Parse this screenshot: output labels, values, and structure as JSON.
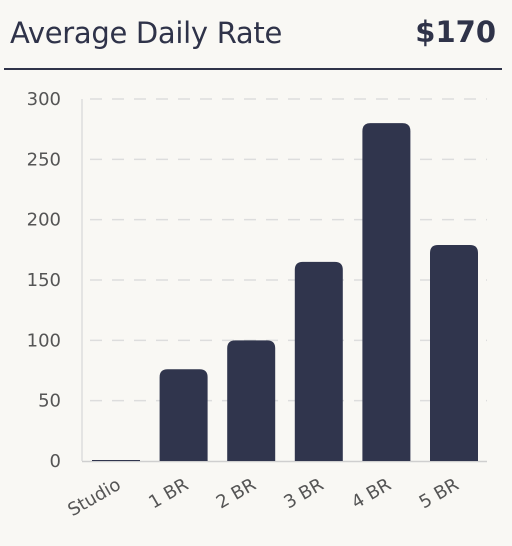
{
  "header": {
    "title": "Average Daily Rate",
    "value": "$170"
  },
  "colors": {
    "bar": "#30354d",
    "text": "#2f3349",
    "axis_text": "#555555",
    "grid": "#dddddd",
    "background": "#f9f8f4"
  },
  "chart_data": {
    "type": "bar",
    "categories": [
      "Studio",
      "1 BR",
      "2 BR",
      "3 BR",
      "4 BR",
      "5 BR"
    ],
    "values": [
      0,
      76,
      100,
      165,
      280,
      179
    ],
    "yticks": [
      "0",
      "50",
      "100",
      "150",
      "200",
      "250",
      "300"
    ],
    "ylim": [
      0,
      300
    ],
    "grid": true,
    "title": "Average Daily Rate"
  }
}
